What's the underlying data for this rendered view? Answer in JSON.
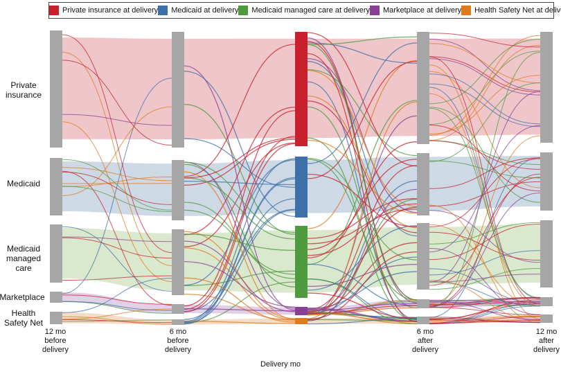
{
  "legend": [
    {
      "label": "Private insurance at delivery",
      "color": "#c8202c"
    },
    {
      "label": "Medicaid at delivery",
      "color": "#3d6fa8"
    },
    {
      "label": "Medicaid managed care at delivery",
      "color": "#4e9a3e"
    },
    {
      "label": "Marketplace at delivery",
      "color": "#8a3f96"
    },
    {
      "label": "Health Safety Net at delivery",
      "color": "#e07a1f"
    }
  ],
  "categories": [
    "Private\ninsurance",
    "Medicaid",
    "Medicaid\nmanaged care",
    "Marketplace",
    "Health\nSafety Net"
  ],
  "time_points": [
    "12 mo\nbefore\ndelivery",
    "6 mo\nbefore\ndelivery",
    "6 mo\nafter\ndelivery",
    "12 mo\nafter\ndelivery"
  ],
  "x_axis_title": "Delivery mo",
  "colors": {
    "node_gray": "#a6a6a6",
    "private_band": "#ecbcbf",
    "medicaid_band": "#c5d2e2",
    "mmc_band": "#d3e4c6",
    "marketplace_band": "#ddc8e2",
    "hsn_band": "#f2d6bd"
  }
}
